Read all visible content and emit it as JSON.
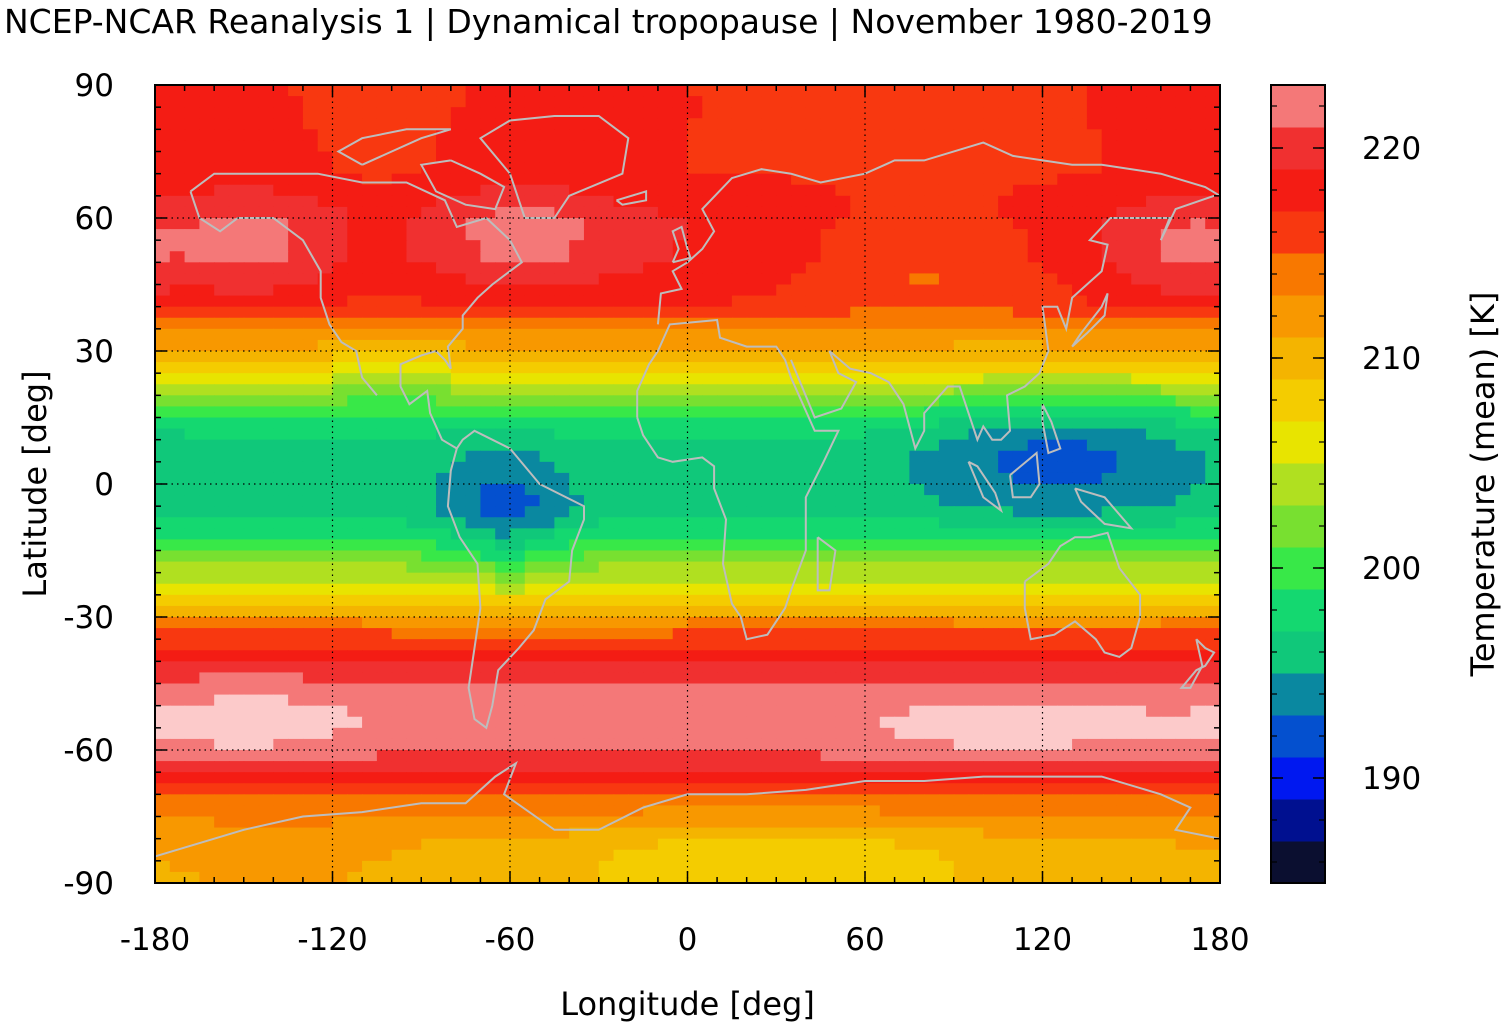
{
  "chart_data": {
    "type": "heatmap",
    "title": "NCEP-NCAR Reanalysis 1 | Dynamical tropopause | November 1980-2019",
    "xlabel": "Longitude [deg]",
    "ylabel": "Latitude [deg]",
    "xlim": [
      -180,
      180
    ],
    "ylim": [
      -90,
      90
    ],
    "xticks": [
      "-180",
      "-120",
      "-60",
      "0",
      "60",
      "120",
      "180"
    ],
    "yticks": [
      "90",
      "60",
      "30",
      "0",
      "-30",
      "-60",
      "-90"
    ],
    "grid": true,
    "colorbar": {
      "label": "Temperature (mean) [K]",
      "range": [
        185,
        223
      ],
      "ticks": [
        "220",
        "210",
        "200",
        "190"
      ],
      "tick_values": [
        220,
        210,
        200,
        190
      ],
      "levels": [
        {
          "min": 185,
          "max": 187,
          "color": "#0b0f30"
        },
        {
          "min": 187,
          "max": 189,
          "color": "#001090"
        },
        {
          "min": 189,
          "max": 191,
          "color": "#0018f0"
        },
        {
          "min": 191,
          "max": 193,
          "color": "#0450cf"
        },
        {
          "min": 193,
          "max": 195,
          "color": "#0a88a0"
        },
        {
          "min": 195,
          "max": 197,
          "color": "#10c87a"
        },
        {
          "min": 197,
          "max": 199,
          "color": "#14d870"
        },
        {
          "min": 199,
          "max": 201,
          "color": "#38e848"
        },
        {
          "min": 201,
          "max": 203,
          "color": "#78e030"
        },
        {
          "min": 203,
          "max": 205,
          "color": "#b0e020"
        },
        {
          "min": 205,
          "max": 207,
          "color": "#e8e400"
        },
        {
          "min": 207,
          "max": 209,
          "color": "#f4cc00"
        },
        {
          "min": 209,
          "max": 211,
          "color": "#f4b400"
        },
        {
          "min": 211,
          "max": 213,
          "color": "#f89800"
        },
        {
          "min": 213,
          "max": 215,
          "color": "#f87800"
        },
        {
          "min": 215,
          "max": 217,
          "color": "#f83810"
        },
        {
          "min": 217,
          "max": 219,
          "color": "#f41c14"
        },
        {
          "min": 219,
          "max": 221,
          "color": "#f03030"
        },
        {
          "min": 221,
          "max": 223,
          "color": "#f47878"
        },
        {
          "min": 223,
          "max": 225,
          "color": "#fccaca"
        }
      ]
    },
    "zonal_profile": {
      "latitudes": [
        90,
        80,
        70,
        60,
        50,
        40,
        35,
        30,
        25,
        20,
        15,
        10,
        5,
        0,
        -5,
        -10,
        -15,
        -20,
        -25,
        -30,
        -35,
        -40,
        -45,
        -50,
        -55,
        -60,
        -65,
        -70,
        -75,
        -80,
        -85,
        -90
      ],
      "temperature_K": [
        217,
        217,
        217,
        219,
        219,
        217,
        213,
        211,
        207,
        203,
        199,
        197,
        196,
        196,
        196,
        198,
        201,
        204,
        207,
        212,
        216,
        219,
        221,
        222,
        222,
        221,
        219,
        215,
        213,
        211,
        210,
        210
      ]
    },
    "anomalies": [
      {
        "lon": -140,
        "lat": 55,
        "rx": 40,
        "ry": 14,
        "dT": 3
      },
      {
        "lon": -55,
        "lat": 57,
        "rx": 30,
        "ry": 12,
        "dT": 3
      },
      {
        "lon": 80,
        "lat": 52,
        "rx": 45,
        "ry": 13,
        "dT": -4
      },
      {
        "lon": 165,
        "lat": 52,
        "rx": 20,
        "ry": 14,
        "dT": 2
      },
      {
        "lon": -110,
        "lat": 55,
        "rx": 25,
        "ry": 16,
        "dT": -2
      },
      {
        "lon": 125,
        "lat": 8,
        "rx": 45,
        "ry": 15,
        "dT": -4
      },
      {
        "lon": -62,
        "lat": -8,
        "rx": 22,
        "ry": 15,
        "dT": -4
      },
      {
        "lon": -100,
        "lat": 25,
        "rx": 25,
        "ry": 10,
        "dT": -2
      },
      {
        "lon": -145,
        "lat": -55,
        "rx": 40,
        "ry": 10,
        "dT": 2
      },
      {
        "lon": 110,
        "lat": -57,
        "rx": 60,
        "ry": 10,
        "dT": 2
      },
      {
        "lon": 30,
        "lat": -85,
        "rx": 60,
        "ry": 10,
        "dT": -3
      },
      {
        "lon": -140,
        "lat": -85,
        "rx": 40,
        "ry": 8,
        "dT": 2
      }
    ]
  }
}
